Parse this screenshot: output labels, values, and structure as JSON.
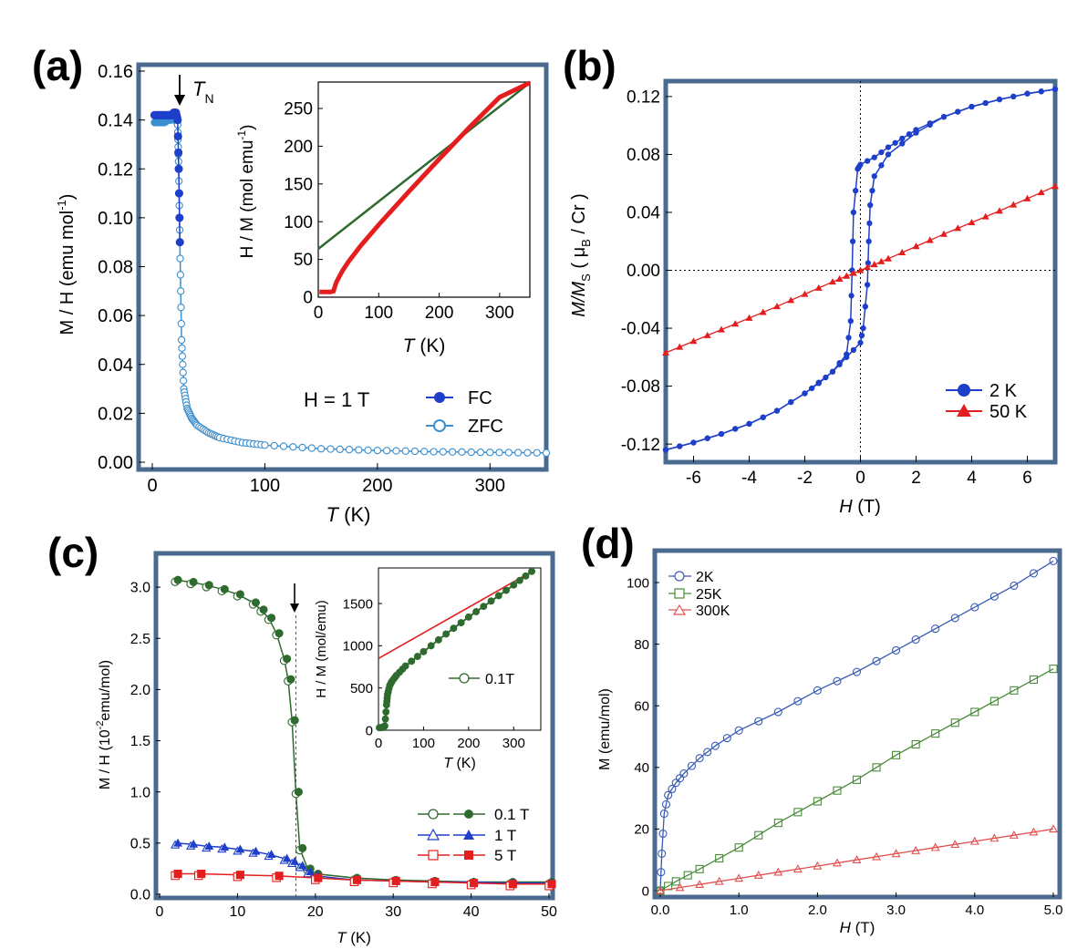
{
  "colors": {
    "frame": "#4a6b8f",
    "blue_dark": "#1e3fc9",
    "blue_light": "#3b8fcf",
    "red": "#e41e1e",
    "green_dark": "#2f6b2f",
    "blue_d": "#3a5bb5",
    "green_d": "#4a8a3a",
    "red_d": "#e05050"
  },
  "chart_data": [
    {
      "panel": "a",
      "type": "scatter",
      "label": "(a)",
      "xlabel_var": "T",
      "xlabel_unit": " (K)",
      "ylabel": "M / H (emu mol",
      "ylabel_sup": "-1",
      "ylabel_close": ")",
      "xlim": [
        0,
        350
      ],
      "ylim": [
        0,
        0.16
      ],
      "xticks": [
        "0",
        "100",
        "200",
        "300"
      ],
      "yticks": [
        "0.00",
        "0.02",
        "0.04",
        "0.06",
        "0.08",
        "0.10",
        "0.12",
        "0.14",
        "0.16"
      ],
      "annotation": "T",
      "annotation_sub": "N",
      "field_label": "H = 1 T",
      "series": [
        {
          "name": "FC",
          "x": [
            2,
            5,
            8,
            11,
            14,
            17,
            19,
            21,
            22.5,
            23.5,
            24.5,
            26,
            28,
            31,
            35,
            40,
            50,
            60,
            80,
            100,
            150,
            200,
            250,
            300,
            350
          ],
          "y": [
            0.142,
            0.142,
            0.142,
            0.142,
            0.142,
            0.142,
            0.143,
            0.143,
            0.14,
            0.12,
            0.09,
            0.05,
            0.03,
            0.022,
            0.018,
            0.015,
            0.012,
            0.01,
            0.008,
            0.007,
            0.0055,
            0.0048,
            0.0043,
            0.004,
            0.0038
          ]
        },
        {
          "name": "ZFC",
          "x": [
            2,
            5,
            8,
            11,
            14,
            17,
            19,
            21,
            22.5,
            23.5,
            24.5,
            26,
            28,
            31,
            35,
            40,
            50,
            60,
            80,
            100,
            150,
            200,
            250,
            300,
            350
          ],
          "y": [
            0.139,
            0.139,
            0.139,
            0.139,
            0.14,
            0.14,
            0.141,
            0.141,
            0.138,
            0.12,
            0.09,
            0.05,
            0.03,
            0.022,
            0.018,
            0.015,
            0.012,
            0.01,
            0.008,
            0.007,
            0.0055,
            0.0048,
            0.0043,
            0.004,
            0.0038
          ]
        }
      ],
      "inset": {
        "type": "line",
        "xlabel_var": "T",
        "xlabel_unit": " (K)",
        "ylabel": "H / M (mol emu",
        "ylabel_sup": "-1",
        "ylabel_close": ")",
        "xlim": [
          0,
          350
        ],
        "ylim": [
          0,
          285
        ],
        "xticks": [
          "0",
          "100",
          "200",
          "300"
        ],
        "yticks": [
          "0",
          "50",
          "100",
          "150",
          "200",
          "250"
        ],
        "data": {
          "x": [
            2,
            10,
            20,
            25,
            30,
            40,
            50,
            70,
            100,
            150,
            200,
            250,
            300,
            350
          ],
          "y": [
            7,
            7,
            7,
            8,
            20,
            35,
            47,
            68,
            96,
            140,
            183,
            225,
            265,
            284
          ]
        },
        "fit": {
          "x": [
            0,
            350
          ],
          "y": [
            64,
            284
          ]
        }
      }
    },
    {
      "panel": "b",
      "type": "line",
      "label": "(b)",
      "xlabel_var": "H",
      "xlabel_unit": " (T)",
      "ylabel": "M/M",
      "ylabel_sub": "S",
      "ylabel_tail": " ( μ",
      "ylabel_sub2": "B",
      "ylabel_end": " / Cr )",
      "xlim": [
        -7,
        7
      ],
      "ylim": [
        -0.13,
        0.13
      ],
      "xticks": [
        "-6",
        "-4",
        "-2",
        "0",
        "2",
        "4",
        "6"
      ],
      "yticks": [
        "-0.12",
        "-0.08",
        "-0.04",
        "0.00",
        "0.04",
        "0.08",
        "0.12"
      ],
      "series": [
        {
          "name": "2 K",
          "x_down": [
            7,
            6,
            5,
            4,
            3,
            2,
            1.5,
            1,
            0.5,
            0,
            -0.1,
            -0.25,
            -0.3,
            -0.35,
            -0.5,
            -1,
            -2,
            -3,
            -4,
            -5,
            -6,
            -7
          ],
          "y_down": [
            0.125,
            0.122,
            0.118,
            0.113,
            0.106,
            0.097,
            0.091,
            0.085,
            0.078,
            0.073,
            0.07,
            0.04,
            0.0,
            -0.035,
            -0.058,
            -0.07,
            -0.085,
            -0.097,
            -0.106,
            -0.113,
            -0.119,
            -0.124
          ],
          "x_up": [
            -7,
            -6,
            -5,
            -4,
            -3,
            -2,
            -1.5,
            -1,
            -0.5,
            0,
            0.1,
            0.25,
            0.3,
            0.35,
            0.5,
            1,
            2,
            3,
            4,
            5,
            6,
            7
          ],
          "y_up": [
            -0.124,
            -0.119,
            -0.113,
            -0.106,
            -0.097,
            -0.085,
            -0.078,
            -0.07,
            -0.06,
            -0.05,
            -0.04,
            -0.01,
            0.02,
            0.045,
            0.065,
            0.08,
            0.095,
            0.106,
            0.113,
            0.118,
            0.122,
            0.125
          ]
        },
        {
          "name": "50 K",
          "x": [
            -7,
            -5,
            -3,
            -1,
            0,
            1,
            3,
            5,
            7
          ],
          "y": [
            -0.057,
            -0.041,
            -0.025,
            -0.008,
            0.0,
            0.008,
            0.025,
            0.041,
            0.058
          ]
        }
      ]
    },
    {
      "panel": "c",
      "type": "line",
      "label": "(c)",
      "xlabel_var": "T",
      "xlabel_unit": " (K)",
      "ylabel": "M / H (10",
      "ylabel_sup": "-2",
      "ylabel_close": "emu/mol)",
      "xlim": [
        0,
        50
      ],
      "ylim": [
        0,
        3.25
      ],
      "xticks": [
        "0",
        "10",
        "20",
        "30",
        "40",
        "50"
      ],
      "yticks": [
        "0.0",
        "0.5",
        "1.0",
        "1.5",
        "2.0",
        "2.5",
        "3.0"
      ],
      "vline_x": 17.5,
      "series": [
        {
          "name": "0.1 T",
          "x": [
            2,
            4,
            6,
            8,
            10,
            12,
            13,
            14,
            15,
            16,
            16.5,
            17,
            17.5,
            18,
            19,
            20,
            25,
            30,
            35,
            40,
            45,
            50
          ],
          "y": [
            3.07,
            3.05,
            3.02,
            2.98,
            2.93,
            2.85,
            2.78,
            2.7,
            2.55,
            2.3,
            2.1,
            1.7,
            1.0,
            0.45,
            0.25,
            0.2,
            0.16,
            0.14,
            0.13,
            0.12,
            0.12,
            0.12
          ]
        },
        {
          "name": "1 T",
          "x": [
            2,
            4,
            6,
            8,
            10,
            12,
            14,
            16,
            17,
            18,
            19,
            20,
            25,
            30,
            35,
            40,
            45,
            50
          ],
          "y": [
            0.5,
            0.49,
            0.47,
            0.46,
            0.44,
            0.42,
            0.39,
            0.35,
            0.32,
            0.28,
            0.22,
            0.18,
            0.14,
            0.13,
            0.12,
            0.12,
            0.11,
            0.11
          ]
        },
        {
          "name": "5 T",
          "x": [
            2,
            5,
            10,
            15,
            20,
            25,
            30,
            35,
            40,
            45,
            50
          ],
          "y": [
            0.2,
            0.2,
            0.19,
            0.18,
            0.16,
            0.14,
            0.13,
            0.12,
            0.11,
            0.1,
            0.1
          ]
        }
      ],
      "inset": {
        "type": "line",
        "xlabel_var": "T",
        "xlabel_unit": " (K)",
        "ylabel": "H / M (mol/emu)",
        "xlim": [
          0,
          350
        ],
        "ylim": [
          0,
          1900
        ],
        "xticks": [
          "0",
          "100",
          "200",
          "300"
        ],
        "yticks": [
          "0",
          "500",
          "1000",
          "1500"
        ],
        "legend": "0.1T",
        "data": {
          "x": [
            2,
            8,
            14,
            18,
            20,
            25,
            30,
            40,
            60,
            100,
            150,
            200,
            250,
            300,
            340
          ],
          "y": [
            30,
            30,
            50,
            300,
            420,
            530,
            580,
            650,
            760,
            930,
            1140,
            1340,
            1530,
            1720,
            1880
          ]
        },
        "fit": {
          "x": [
            0,
            340
          ],
          "y": [
            850,
            1880
          ]
        }
      }
    },
    {
      "panel": "d",
      "type": "line",
      "label": "(d)",
      "xlabel_var": "H",
      "xlabel_unit": " (T)",
      "ylabel": "M (emu/mol)",
      "xlim": [
        0,
        5
      ],
      "ylim": [
        0,
        108
      ],
      "xticks": [
        "0.0",
        "1.0",
        "2.0",
        "3.0",
        "4.0",
        "5.0"
      ],
      "yticks": [
        "0",
        "20",
        "40",
        "60",
        "80",
        "100"
      ],
      "series": [
        {
          "name": "2K",
          "x": [
            0,
            0.02,
            0.05,
            0.1,
            0.2,
            0.3,
            0.5,
            0.7,
            1.0,
            1.5,
            2.0,
            2.5,
            3.0,
            3.5,
            4.0,
            4.5,
            5.0
          ],
          "y": [
            0,
            12,
            25,
            31,
            35,
            38,
            43,
            47,
            52,
            58,
            65,
            71,
            78,
            85,
            92,
            99,
            107
          ]
        },
        {
          "name": "25K",
          "x": [
            0,
            0.2,
            0.5,
            1.0,
            1.5,
            2.0,
            2.5,
            3.0,
            3.5,
            4.0,
            4.5,
            5.0
          ],
          "y": [
            0,
            3,
            7,
            14,
            22,
            29,
            36,
            44,
            51,
            58,
            65,
            72
          ]
        },
        {
          "name": "300K",
          "x": [
            0,
            0.5,
            1.0,
            1.5,
            2.0,
            2.5,
            3.0,
            3.5,
            4.0,
            4.5,
            5.0
          ],
          "y": [
            0,
            2,
            4,
            6,
            8,
            10,
            12,
            14,
            16,
            18,
            20
          ]
        }
      ]
    }
  ]
}
